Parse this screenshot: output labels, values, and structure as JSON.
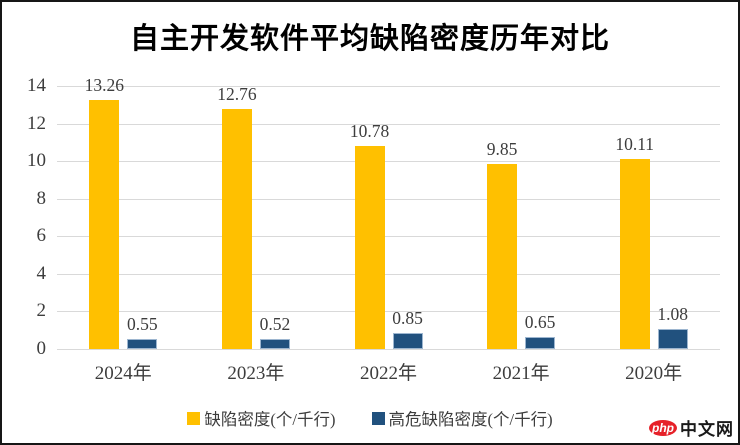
{
  "chart_data": {
    "type": "bar",
    "title": "自主开发软件平均缺陷密度历年对比",
    "categories": [
      "2024年",
      "2023年",
      "2022年",
      "2021年",
      "2020年"
    ],
    "series": [
      {
        "name": "缺陷密度(个/千行)",
        "color": "#FFC000",
        "values": [
          13.26,
          12.76,
          10.78,
          9.85,
          10.11
        ]
      },
      {
        "name": "高危缺陷密度(个/千行)",
        "color": "#21517E",
        "values": [
          0.55,
          0.52,
          0.85,
          0.65,
          1.08
        ]
      }
    ],
    "xlabel": "",
    "ylabel": "",
    "ylim": [
      0,
      14
    ],
    "ytick_step": 2,
    "yticks": [
      "0",
      "2",
      "4",
      "6",
      "8",
      "10",
      "12",
      "14"
    ],
    "grid": true,
    "legend_position": "bottom",
    "value_labels_shown": true
  },
  "watermark": {
    "logo_text": "php",
    "site_text": "中文网",
    "logo_color": "#e62129"
  }
}
